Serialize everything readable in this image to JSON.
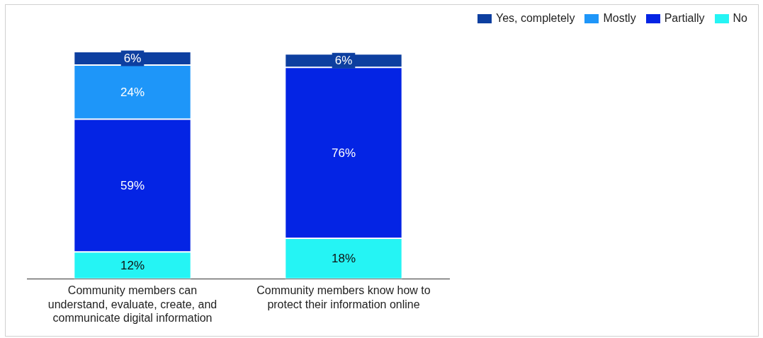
{
  "chart_data": {
    "type": "bar",
    "stacked": true,
    "categories": [
      "Community members can understand, evaluate, create, and communicate digital information",
      "Community members know how to protect their information online"
    ],
    "series": [
      {
        "name": "No",
        "color": "#25f4f4",
        "values": [
          12,
          18
        ],
        "value_labels": [
          "12%",
          "18%"
        ]
      },
      {
        "name": "Partially",
        "color": "#0424e4",
        "values": [
          59,
          76
        ],
        "value_labels": [
          "59%",
          "76%"
        ]
      },
      {
        "name": "Mostly",
        "color": "#1e96f9",
        "values": [
          24,
          0
        ],
        "value_labels": [
          "24%",
          null
        ]
      },
      {
        "name": "Yes, completely",
        "color": "#0d3fa0",
        "values": [
          6,
          6
        ],
        "value_labels": [
          "6%",
          "6%"
        ]
      }
    ],
    "ylim": [
      0,
      101
    ],
    "legend": "top right",
    "tick_labels": "x"
  }
}
